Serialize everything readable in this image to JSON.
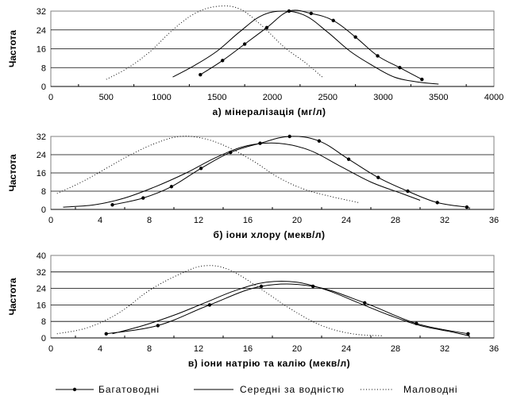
{
  "chart_data": [
    {
      "type": "line",
      "xlabel": "а) мінералізація (мг/л)",
      "ylabel": "Частота",
      "xlim": [
        0,
        4000
      ],
      "ylim": [
        0,
        32
      ],
      "xticks": [
        "0",
        "500",
        "1000",
        "1500",
        "2000",
        "2500",
        "3000",
        "3500",
        "4000"
      ],
      "yticks": [
        "0",
        "8",
        "16",
        "24",
        "32"
      ],
      "grid": "horizontal",
      "series": [
        {
          "name": "Багатоводні",
          "style": "solid-markers",
          "x": [
            1350,
            1550,
            1750,
            1950,
            2150,
            2350,
            2550,
            2750,
            2950,
            3150,
            3350
          ],
          "y": [
            5,
            11,
            18,
            25,
            32,
            31,
            28,
            21,
            13,
            8,
            3
          ]
        },
        {
          "name": "Середні за водністю",
          "style": "solid",
          "x": [
            1100,
            1300,
            1500,
            1700,
            1900,
            2100,
            2300,
            2500,
            2700,
            2900,
            3100,
            3300,
            3500
          ],
          "y": [
            4,
            9,
            15,
            23,
            30,
            32,
            30,
            23,
            15,
            9,
            4,
            2,
            1
          ]
        },
        {
          "name": "Маловодні",
          "style": "dotted",
          "x": [
            500,
            700,
            900,
            1100,
            1300,
            1500,
            1700,
            1900,
            2100,
            2300,
            2450
          ],
          "y": [
            3,
            8,
            15,
            24,
            31,
            34,
            33,
            26,
            17,
            10,
            4
          ]
        }
      ]
    },
    {
      "type": "line",
      "xlabel": "б) іони хлору (мекв/л)",
      "ylabel": "Частота",
      "xlim": [
        0,
        36
      ],
      "ylim": [
        0,
        32
      ],
      "xticks": [
        "0",
        "4",
        "8",
        "12",
        "16",
        "20",
        "24",
        "28",
        "32",
        "36"
      ],
      "yticks": [
        "0",
        "8",
        "16",
        "24",
        "32"
      ],
      "grid": "horizontal",
      "series": [
        {
          "name": "Багатоводні",
          "style": "solid-markers",
          "x": [
            5,
            7.5,
            9.8,
            12.2,
            14.6,
            17,
            19.4,
            21.8,
            24.2,
            26.6,
            29,
            31.4,
            33.8
          ],
          "y": [
            2,
            5,
            10,
            18,
            25,
            29,
            32,
            30,
            22,
            14,
            8,
            3,
            1
          ]
        },
        {
          "name": "Середні за водністю",
          "style": "solid",
          "x": [
            1,
            3.5,
            6,
            8.5,
            11,
            13.5,
            16,
            18.5,
            21,
            23.5,
            26,
            28.5,
            30
          ],
          "y": [
            1,
            2,
            5,
            10,
            16,
            23,
            28,
            29,
            26,
            19,
            12,
            7,
            4
          ]
        },
        {
          "name": "Маловодні",
          "style": "dotted",
          "x": [
            0.5,
            2.5,
            4.5,
            6.5,
            8.5,
            10.5,
            12.5,
            14.5,
            16.5,
            18.5,
            20.5,
            22.5,
            25
          ],
          "y": [
            7,
            12,
            18,
            24,
            29,
            32,
            31,
            27,
            21,
            14,
            9,
            6,
            3
          ]
        }
      ]
    },
    {
      "type": "line",
      "xlabel": "в) іони натрію та калію (мекв/л)",
      "ylabel": "Частота",
      "xlim": [
        0,
        36
      ],
      "ylim": [
        0,
        40
      ],
      "xticks": [
        "0",
        "4",
        "8",
        "12",
        "16",
        "20",
        "24",
        "28",
        "32",
        "36"
      ],
      "yticks": [
        "0",
        "8",
        "16",
        "24",
        "32",
        "40"
      ],
      "grid": "horizontal",
      "series": [
        {
          "name": "Багатоводні",
          "style": "solid-markers",
          "x": [
            4.5,
            8.7,
            12.9,
            17.1,
            21.3,
            25.5,
            29.7,
            33.9
          ],
          "y": [
            2,
            6,
            16,
            25,
            25,
            17,
            7,
            2
          ]
        },
        {
          "name": "Середні за водністю",
          "style": "solid",
          "x": [
            5,
            7.5,
            10,
            12.5,
            15,
            17.5,
            20,
            22.5,
            25,
            27.5,
            30,
            32.5,
            34
          ],
          "y": [
            2,
            6,
            11,
            17,
            23,
            27,
            27,
            23,
            17,
            11,
            6,
            3,
            1
          ]
        },
        {
          "name": "Маловодні",
          "style": "dotted",
          "x": [
            0.5,
            3,
            5.5,
            8,
            10.5,
            12.5,
            14.5,
            17,
            19.5,
            22,
            24.5,
            27
          ],
          "y": [
            2,
            5,
            12,
            23,
            31,
            35,
            33,
            24,
            14,
            6,
            2,
            1
          ]
        }
      ]
    }
  ],
  "legend": {
    "position": "bottom",
    "entries": [
      "Багатоводні",
      "Середні за водністю",
      "Маловодні"
    ]
  }
}
